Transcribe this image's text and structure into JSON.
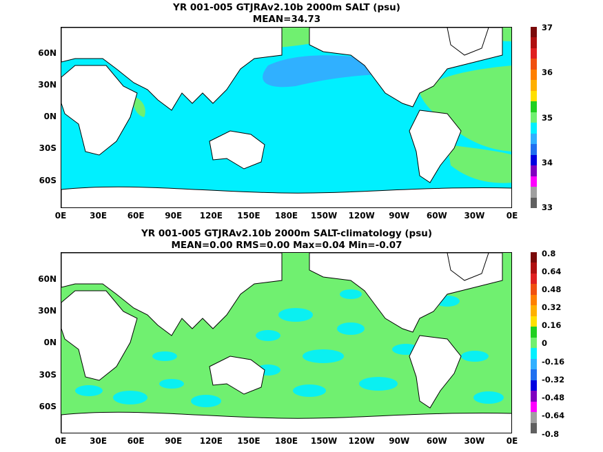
{
  "panels": [
    {
      "title": "YR 001-005 GTJRAv2.10b 2000m SALT (psu)",
      "subtitle": "MEAN=34.73",
      "base_fill": "#00f0ff",
      "colorbar": {
        "labels": [
          "37",
          "36",
          "35",
          "34",
          "33"
        ],
        "colors": [
          "#7a0a0a",
          "#b01010",
          "#e02020",
          "#f05010",
          "#ff8000",
          "#ffb000",
          "#ffe000",
          "#20d020",
          "#70f070",
          "#00f0ff",
          "#30b0ff",
          "#2070f0",
          "#0000e0",
          "#8000c0",
          "#ff00ff",
          "#a0a0a0",
          "#606060"
        ]
      }
    },
    {
      "title": "YR 001-005 GTJRAv2.10b 2000m SALT-climatology (psu)",
      "subtitle": "MEAN=0.00   RMS=0.00   Max=0.04   Min=-0.07",
      "base_fill": "#70f070",
      "colorbar": {
        "labels": [
          "0.8",
          "0.64",
          "0.48",
          "0.32",
          "0.16",
          "0",
          "-0.16",
          "-0.32",
          "-0.48",
          "-0.64",
          "-0.8"
        ],
        "colors": [
          "#7a0a0a",
          "#b01010",
          "#e02020",
          "#f05010",
          "#ff8000",
          "#ffb000",
          "#ffe000",
          "#20d020",
          "#70f070",
          "#00f0ff",
          "#30b0ff",
          "#2070f0",
          "#0000e0",
          "#8000c0",
          "#ff00ff",
          "#a0a0a0",
          "#606060"
        ]
      }
    }
  ],
  "lat_labels": [
    "60N",
    "30N",
    "0N",
    "30S",
    "60S"
  ],
  "lon_labels": [
    "0E",
    "30E",
    "60E",
    "90E",
    "120E",
    "150E",
    "180E",
    "150W",
    "120W",
    "90W",
    "60W",
    "30W",
    "0E"
  ],
  "colors": {
    "land": "#ffffff",
    "coast": "#000000",
    "salt_high": "#70f070",
    "salt_mid": "#00f0ff",
    "salt_low": "#30b0ff",
    "anom_zero": "#00f0ff",
    "anom_pos": "#70f070"
  }
}
